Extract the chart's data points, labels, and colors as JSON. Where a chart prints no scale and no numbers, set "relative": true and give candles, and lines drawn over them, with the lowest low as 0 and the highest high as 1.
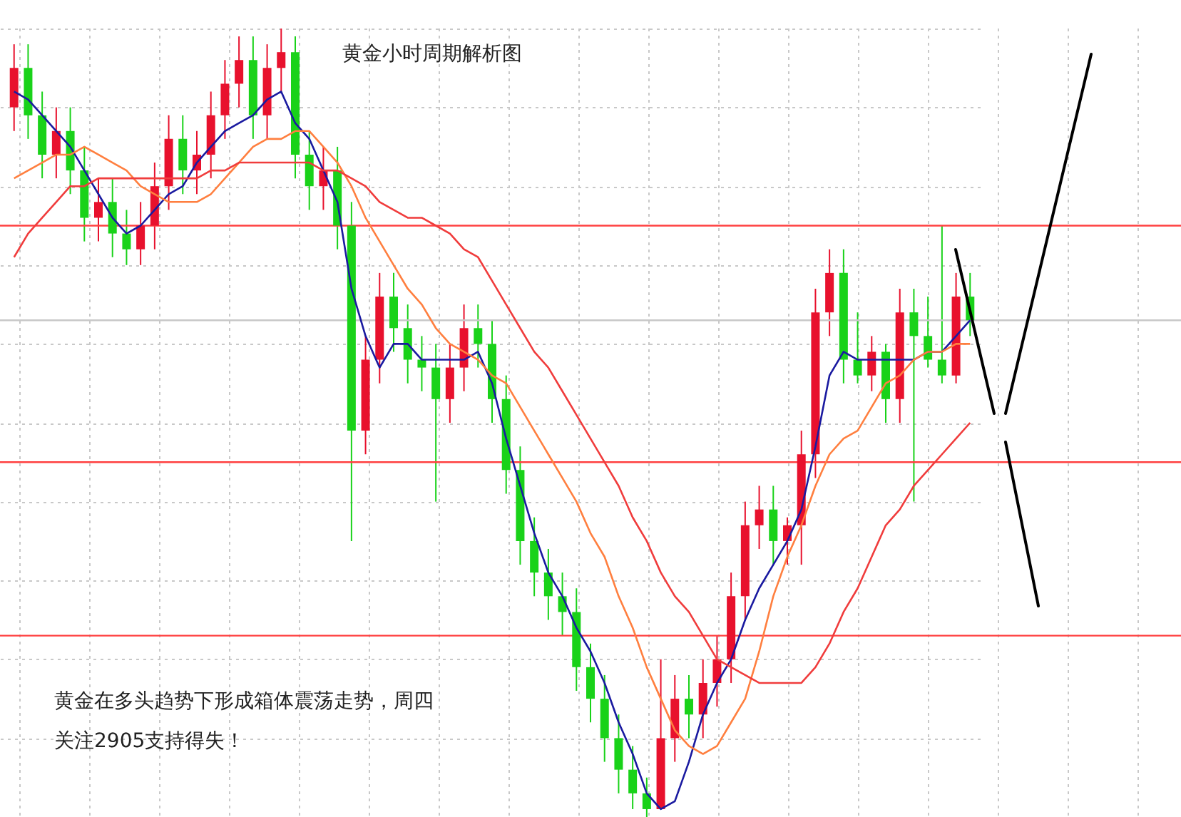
{
  "chart_data": {
    "type": "candlestick",
    "title": "黄金小时周期解析图",
    "relative": true,
    "grid": true,
    "annotations": [
      "黄金在多头趋势下形成箱体震荡走势，周四",
      "关注2905支持得失！"
    ],
    "categories": [
      null,
      null,
      null,
      null,
      null,
      null,
      null,
      null,
      null,
      null,
      null,
      null,
      null,
      null,
      null,
      null,
      null,
      null,
      null,
      null,
      null,
      null,
      null,
      null,
      null,
      null,
      null,
      null,
      null,
      null,
      null,
      null,
      null,
      null,
      null,
      null,
      null,
      null,
      null,
      null,
      null,
      null,
      null,
      null,
      null,
      null,
      null,
      null,
      null,
      null,
      null,
      null,
      null,
      null,
      null,
      null,
      null,
      null,
      null,
      null,
      null,
      null,
      null,
      null,
      null,
      null,
      null,
      null,
      null
    ],
    "ohlc": [
      [
        0.9,
        0.98,
        0.87,
        0.95
      ],
      [
        0.95,
        0.98,
        0.86,
        0.89
      ],
      [
        0.89,
        0.92,
        0.81,
        0.84
      ],
      [
        0.84,
        0.9,
        0.81,
        0.87
      ],
      [
        0.87,
        0.9,
        0.79,
        0.82
      ],
      [
        0.82,
        0.85,
        0.73,
        0.76
      ],
      [
        0.76,
        0.81,
        0.73,
        0.78
      ],
      [
        0.78,
        0.81,
        0.71,
        0.74
      ],
      [
        0.74,
        0.77,
        0.7,
        0.72
      ],
      [
        0.72,
        0.78,
        0.7,
        0.75
      ],
      [
        0.75,
        0.83,
        0.72,
        0.8
      ],
      [
        0.8,
        0.89,
        0.77,
        0.86
      ],
      [
        0.86,
        0.89,
        0.79,
        0.82
      ],
      [
        0.82,
        0.87,
        0.79,
        0.84
      ],
      [
        0.84,
        0.92,
        0.81,
        0.89
      ],
      [
        0.89,
        0.96,
        0.86,
        0.93
      ],
      [
        0.93,
        0.99,
        0.9,
        0.96
      ],
      [
        0.96,
        0.99,
        0.86,
        0.89
      ],
      [
        0.89,
        0.98,
        0.86,
        0.95
      ],
      [
        0.95,
        1,
        0.92,
        0.97
      ],
      [
        0.97,
        0.99,
        0.81,
        0.84
      ],
      [
        0.84,
        0.87,
        0.77,
        0.8
      ],
      [
        0.8,
        0.85,
        0.77,
        0.82
      ],
      [
        0.82,
        0.85,
        0.72,
        0.75
      ],
      [
        0.75,
        0.78,
        0.35,
        0.49
      ],
      [
        0.49,
        0.61,
        0.46,
        0.58
      ],
      [
        0.58,
        0.69,
        0.55,
        0.66
      ],
      [
        0.66,
        0.69,
        0.59,
        0.62
      ],
      [
        0.62,
        0.65,
        0.55,
        0.58
      ],
      [
        0.58,
        0.61,
        0.54,
        0.57
      ],
      [
        0.57,
        0.6,
        0.4,
        0.53
      ],
      [
        0.53,
        0.6,
        0.5,
        0.57
      ],
      [
        0.57,
        0.65,
        0.54,
        0.62
      ],
      [
        0.62,
        0.65,
        0.57,
        0.6
      ],
      [
        0.6,
        0.63,
        0.5,
        0.53
      ],
      [
        0.53,
        0.56,
        0.41,
        0.44
      ],
      [
        0.44,
        0.47,
        0.32,
        0.35
      ],
      [
        0.35,
        0.38,
        0.28,
        0.31
      ],
      [
        0.31,
        0.34,
        0.25,
        0.28
      ],
      [
        0.28,
        0.31,
        0.23,
        0.26
      ],
      [
        0.26,
        0.29,
        0.16,
        0.19
      ],
      [
        0.19,
        0.22,
        0.12,
        0.15
      ],
      [
        0.15,
        0.18,
        0.07,
        0.1
      ],
      [
        0.1,
        0.13,
        0.03,
        0.06
      ],
      [
        0.06,
        0.09,
        0.01,
        0.03
      ],
      [
        0.03,
        0.05,
        0,
        0.01
      ],
      [
        0.01,
        0.2,
        0.01,
        0.1
      ],
      [
        0.1,
        0.18,
        0.07,
        0.15
      ],
      [
        0.15,
        0.18,
        0.1,
        0.13
      ],
      [
        0.13,
        0.2,
        0.1,
        0.17
      ],
      [
        0.17,
        0.23,
        0.14,
        0.2
      ],
      [
        0.2,
        0.31,
        0.17,
        0.28
      ],
      [
        0.28,
        0.4,
        0.25,
        0.37
      ],
      [
        0.37,
        0.42,
        0.34,
        0.39
      ],
      [
        0.39,
        0.42,
        0.32,
        0.35
      ],
      [
        0.35,
        0.38,
        0.32,
        0.37
      ],
      [
        0.37,
        0.49,
        0.32,
        0.46
      ],
      [
        0.46,
        0.67,
        0.43,
        0.64
      ],
      [
        0.64,
        0.72,
        0.61,
        0.69
      ],
      [
        0.69,
        0.72,
        0.55,
        0.58
      ],
      [
        0.58,
        0.64,
        0.55,
        0.56
      ],
      [
        0.56,
        0.61,
        0.54,
        0.59
      ],
      [
        0.59,
        0.6,
        0.5,
        0.53
      ],
      [
        0.53,
        0.67,
        0.5,
        0.64
      ],
      [
        0.64,
        0.67,
        0.4,
        0.61
      ],
      [
        0.61,
        0.66,
        0.57,
        0.58
      ],
      [
        0.58,
        0.75,
        0.55,
        0.56
      ],
      [
        0.56,
        0.69,
        0.55,
        0.66
      ],
      [
        0.66,
        0.69,
        0.61,
        0.63
      ]
    ],
    "colors": [
      "#e8112d",
      "#19d219",
      "#19d219",
      "#e8112d",
      "#19d219",
      "#19d219",
      "#e8112d",
      "#19d219",
      "#19d219",
      "#e8112d",
      "#e8112d",
      "#e8112d",
      "#19d219",
      "#e8112d",
      "#e8112d",
      "#e8112d",
      "#e8112d",
      "#19d219",
      "#e8112d",
      "#e8112d",
      "#19d219",
      "#19d219",
      "#e8112d",
      "#19d219",
      "#19d219",
      "#e8112d",
      "#e8112d",
      "#19d219",
      "#19d219",
      "#19d219",
      "#19d219",
      "#e8112d",
      "#e8112d",
      "#19d219",
      "#19d219",
      "#19d219",
      "#19d219",
      "#19d219",
      "#19d219",
      "#19d219",
      "#19d219",
      "#19d219",
      "#19d219",
      "#19d219",
      "#19d219",
      "#19d219",
      "#e8112d",
      "#e8112d",
      "#19d219",
      "#e8112d",
      "#e8112d",
      "#e8112d",
      "#e8112d",
      "#e8112d",
      "#19d219",
      "#e8112d",
      "#e8112d",
      "#e8112d",
      "#e8112d",
      "#19d219",
      "#19d219",
      "#e8112d",
      "#19d219",
      "#e8112d",
      "#19d219",
      "#19d219",
      "#19d219",
      "#e8112d",
      "#19d219"
    ],
    "series": [
      {
        "type": "line",
        "color": "#1a1aa0",
        "values": [
          0.92,
          0.91,
          0.89,
          0.87,
          0.85,
          0.82,
          0.79,
          0.76,
          0.74,
          0.75,
          0.77,
          0.79,
          0.8,
          0.83,
          0.85,
          0.87,
          0.88,
          0.89,
          0.91,
          0.92,
          0.88,
          0.86,
          0.82,
          0.78,
          0.67,
          0.61,
          0.57,
          0.6,
          0.6,
          0.58,
          0.58,
          0.58,
          0.58,
          0.59,
          0.55,
          0.48,
          0.42,
          0.36,
          0.31,
          0.28,
          0.24,
          0.21,
          0.17,
          0.12,
          0.08,
          0.03,
          0.01,
          0.02,
          0.07,
          0.13,
          0.17,
          0.2,
          0.25,
          0.29,
          0.32,
          0.35,
          0.39,
          0.47,
          0.56,
          0.59,
          0.58,
          0.58,
          0.58,
          0.58,
          0.58,
          0.59,
          0.59,
          0.61,
          0.63
        ]
      },
      {
        "type": "line",
        "color": "#ff7f3f",
        "values": [
          0.81,
          0.82,
          0.83,
          0.84,
          0.84,
          0.85,
          0.84,
          0.83,
          0.82,
          0.8,
          0.79,
          0.78,
          0.78,
          0.78,
          0.79,
          0.81,
          0.83,
          0.85,
          0.86,
          0.86,
          0.87,
          0.87,
          0.85,
          0.83,
          0.8,
          0.76,
          0.73,
          0.7,
          0.67,
          0.65,
          0.62,
          0.6,
          0.59,
          0.58,
          0.56,
          0.55,
          0.52,
          0.49,
          0.46,
          0.43,
          0.4,
          0.36,
          0.33,
          0.28,
          0.24,
          0.19,
          0.15,
          0.11,
          0.09,
          0.08,
          0.09,
          0.12,
          0.15,
          0.21,
          0.28,
          0.33,
          0.37,
          0.42,
          0.46,
          0.48,
          0.49,
          0.52,
          0.55,
          0.56,
          0.58,
          0.59,
          0.59,
          0.6,
          0.6
        ]
      },
      {
        "type": "line",
        "color": "#f03c3c",
        "values": [
          0.71,
          0.74,
          0.76,
          0.78,
          0.8,
          0.8,
          0.81,
          0.81,
          0.81,
          0.81,
          0.81,
          0.81,
          0.81,
          0.81,
          0.82,
          0.82,
          0.83,
          0.83,
          0.83,
          0.83,
          0.83,
          0.83,
          0.82,
          0.82,
          0.81,
          0.8,
          0.78,
          0.77,
          0.76,
          0.76,
          0.75,
          0.74,
          0.72,
          0.71,
          0.68,
          0.65,
          0.62,
          0.59,
          0.57,
          0.54,
          0.51,
          0.48,
          0.45,
          0.42,
          0.38,
          0.35,
          0.31,
          0.28,
          0.26,
          0.23,
          0.2,
          0.19,
          0.18,
          0.17,
          0.17,
          0.17,
          0.17,
          0.19,
          0.22,
          0.26,
          0.29,
          0.33,
          0.37,
          0.39,
          0.42,
          0.44,
          0.46,
          0.48,
          0.5
        ]
      }
    ],
    "ref_lines": [
      {
        "axis": "y",
        "value": 0.75,
        "color": "#ff4040"
      },
      {
        "axis": "y",
        "value": 0.45,
        "color": "#ff4040"
      },
      {
        "axis": "y",
        "value": 0.23,
        "color": "#ff4040"
      },
      {
        "axis": "y",
        "value": 0.63,
        "color": "#c8c8c8"
      }
    ]
  }
}
